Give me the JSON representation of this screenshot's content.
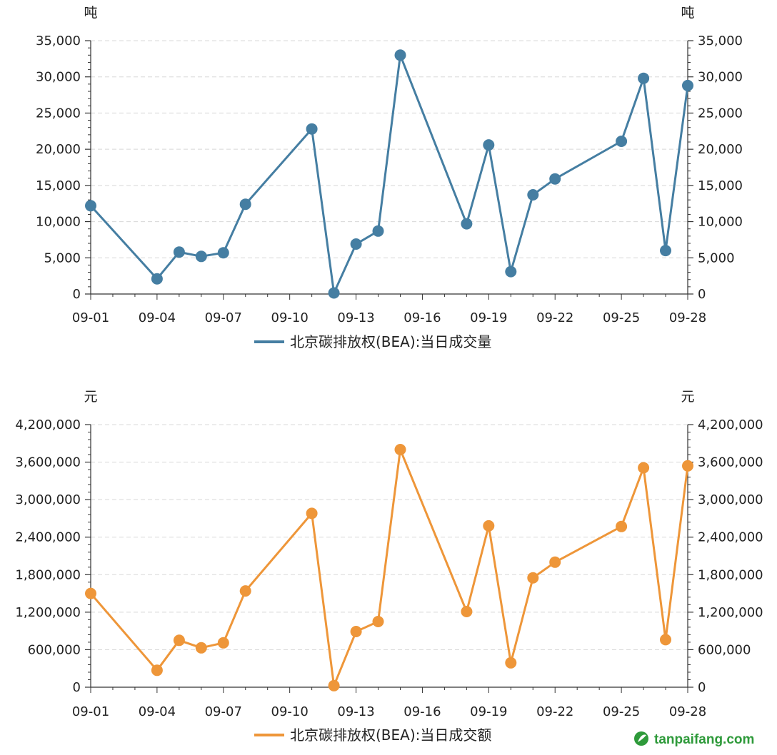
{
  "colors": {
    "volume": "#457ea2",
    "amount": "#ee9639",
    "axis": "#333333",
    "grid": "#d8d8d8",
    "watermark": "#2e9a3a"
  },
  "watermark": {
    "text": "tanpaifang.com",
    "icon": "leaf-circle-logo-icon"
  },
  "chart_data": [
    {
      "type": "line",
      "unit_left": "吨",
      "unit_right": "吨",
      "legend": "北京碳排放权(BEA):当日成交量",
      "legend_position": "bottom-center",
      "grid": "horizontal-dashed",
      "x_axis_type": "date",
      "x_ticks": [
        "09-01",
        "09-04",
        "09-07",
        "09-10",
        "09-13",
        "09-16",
        "09-19",
        "09-22",
        "09-25",
        "09-28"
      ],
      "ylim": [
        0,
        35000
      ],
      "y_ticks": [
        "0",
        "5,000",
        "10,000",
        "15,000",
        "20,000",
        "25,000",
        "30,000",
        "35,000"
      ],
      "series": [
        {
          "name": "北京碳排放权(BEA):当日成交量",
          "points": [
            {
              "x": "09-01",
              "y": 12200
            },
            {
              "x": "09-04",
              "y": 2100
            },
            {
              "x": "09-05",
              "y": 5800
            },
            {
              "x": "09-06",
              "y": 5200
            },
            {
              "x": "09-07",
              "y": 5700
            },
            {
              "x": "09-08",
              "y": 12400
            },
            {
              "x": "09-11",
              "y": 22800
            },
            {
              "x": "09-12",
              "y": 150
            },
            {
              "x": "09-13",
              "y": 6900
            },
            {
              "x": "09-14",
              "y": 8700
            },
            {
              "x": "09-15",
              "y": 33000
            },
            {
              "x": "09-18",
              "y": 9700
            },
            {
              "x": "09-19",
              "y": 20600
            },
            {
              "x": "09-20",
              "y": 3100
            },
            {
              "x": "09-21",
              "y": 13700
            },
            {
              "x": "09-22",
              "y": 15900
            },
            {
              "x": "09-25",
              "y": 21100
            },
            {
              "x": "09-26",
              "y": 29800
            },
            {
              "x": "09-27",
              "y": 6000
            },
            {
              "x": "09-28",
              "y": 28800
            }
          ]
        }
      ]
    },
    {
      "type": "line",
      "unit_left": "元",
      "unit_right": "元",
      "legend": "北京碳排放权(BEA):当日成交额",
      "legend_position": "bottom-center",
      "grid": "horizontal-dashed",
      "x_axis_type": "date",
      "x_ticks": [
        "09-01",
        "09-04",
        "09-07",
        "09-10",
        "09-13",
        "09-16",
        "09-19",
        "09-22",
        "09-25",
        "09-28"
      ],
      "ylim": [
        0,
        4200000
      ],
      "y_ticks": [
        "0",
        "600,000",
        "1,200,000",
        "1,800,000",
        "2,400,000",
        "3,000,000",
        "3,600,000",
        "4,200,000"
      ],
      "series": [
        {
          "name": "北京碳排放权(BEA):当日成交额",
          "points": [
            {
              "x": "09-01",
              "y": 1500000
            },
            {
              "x": "09-04",
              "y": 270000
            },
            {
              "x": "09-05",
              "y": 750000
            },
            {
              "x": "09-06",
              "y": 630000
            },
            {
              "x": "09-07",
              "y": 710000
            },
            {
              "x": "09-08",
              "y": 1540000
            },
            {
              "x": "09-11",
              "y": 2780000
            },
            {
              "x": "09-12",
              "y": 25000
            },
            {
              "x": "09-13",
              "y": 890000
            },
            {
              "x": "09-14",
              "y": 1050000
            },
            {
              "x": "09-15",
              "y": 3800000
            },
            {
              "x": "09-18",
              "y": 1210000
            },
            {
              "x": "09-19",
              "y": 2580000
            },
            {
              "x": "09-20",
              "y": 390000
            },
            {
              "x": "09-21",
              "y": 1750000
            },
            {
              "x": "09-22",
              "y": 2000000
            },
            {
              "x": "09-25",
              "y": 2570000
            },
            {
              "x": "09-26",
              "y": 3510000
            },
            {
              "x": "09-27",
              "y": 760000
            },
            {
              "x": "09-28",
              "y": 3540000
            }
          ]
        }
      ]
    }
  ]
}
